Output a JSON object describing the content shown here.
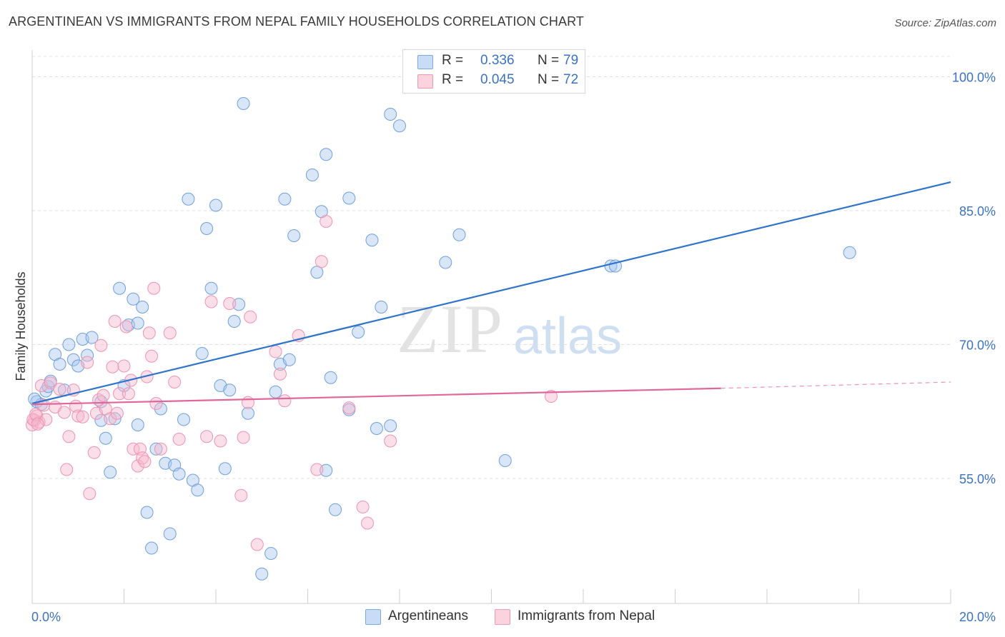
{
  "header": {
    "title": "ARGENTINEAN VS IMMIGRANTS FROM NEPAL FAMILY HOUSEHOLDS CORRELATION CHART",
    "source": "Source: ZipAtlas.com"
  },
  "watermark": {
    "part1": "ZIP",
    "part2": "atlas"
  },
  "legend": {
    "rows": [
      {
        "r_label": "R =",
        "r_value": "0.336",
        "n_label": "N =",
        "n_value": "79",
        "color": "#a9c8ef"
      },
      {
        "r_label": "R =",
        "r_value": "0.045",
        "n_label": "N =",
        "n_value": "72",
        "color": "#f6b9cb"
      }
    ]
  },
  "bottom_legend": {
    "items": [
      {
        "label": "Argentineans",
        "color": "#a9c8ef"
      },
      {
        "label": "Immigrants from Nepal",
        "color": "#f6b9cb"
      }
    ]
  },
  "chart_data": {
    "type": "scatter",
    "ylabel": "Family Households",
    "xlim": [
      0,
      20
    ],
    "ylim": [
      41,
      103
    ],
    "x_tick_labels": [
      "0.0%",
      "20.0%"
    ],
    "y_ticks": [
      55,
      70,
      85,
      100
    ],
    "y_tick_labels": [
      "55.0%",
      "70.0%",
      "85.0%",
      "100.0%"
    ],
    "grid": true,
    "series": [
      {
        "name": "Argentineans",
        "color": "#a9c8ef",
        "line_color": "#2f74cc",
        "trend": {
          "x": [
            0.0,
            20.0
          ],
          "y": [
            63.4,
            88.2
          ]
        },
        "points": [
          [
            0.1,
            63.6
          ],
          [
            0.2,
            63.3
          ],
          [
            0.3,
            64.8
          ],
          [
            0.35,
            65.3
          ],
          [
            0.4,
            65.9
          ],
          [
            0.5,
            68.9
          ],
          [
            0.6,
            67.8
          ],
          [
            0.7,
            64.9
          ],
          [
            0.8,
            70.0
          ],
          [
            0.9,
            68.3
          ],
          [
            1.0,
            67.6
          ],
          [
            1.1,
            70.6
          ],
          [
            1.2,
            68.8
          ],
          [
            1.3,
            70.8
          ],
          [
            1.5,
            63.6
          ],
          [
            1.5,
            61.5
          ],
          [
            1.6,
            59.5
          ],
          [
            1.7,
            55.7
          ],
          [
            1.8,
            61.7
          ],
          [
            1.9,
            76.3
          ],
          [
            2.0,
            65.4
          ],
          [
            2.1,
            72.2
          ],
          [
            2.2,
            75.1
          ],
          [
            2.3,
            72.4
          ],
          [
            2.3,
            61.0
          ],
          [
            2.4,
            74.2
          ],
          [
            2.5,
            51.2
          ],
          [
            2.6,
            47.2
          ],
          [
            2.7,
            58.3
          ],
          [
            2.8,
            62.8
          ],
          [
            2.9,
            56.7
          ],
          [
            3.0,
            48.8
          ],
          [
            3.1,
            56.5
          ],
          [
            3.2,
            55.5
          ],
          [
            3.3,
            61.6
          ],
          [
            3.4,
            86.3
          ],
          [
            3.5,
            54.8
          ],
          [
            3.6,
            53.7
          ],
          [
            3.7,
            69.0
          ],
          [
            3.8,
            83.0
          ],
          [
            3.9,
            76.3
          ],
          [
            4.0,
            85.6
          ],
          [
            4.1,
            65.4
          ],
          [
            4.2,
            56.1
          ],
          [
            4.3,
            64.9
          ],
          [
            4.4,
            72.6
          ],
          [
            4.5,
            74.5
          ],
          [
            4.6,
            97.0
          ],
          [
            4.7,
            62.3
          ],
          [
            5.0,
            44.3
          ],
          [
            5.2,
            46.6
          ],
          [
            5.3,
            64.7
          ],
          [
            5.4,
            67.8
          ],
          [
            5.5,
            86.3
          ],
          [
            5.6,
            68.3
          ],
          [
            5.7,
            82.2
          ],
          [
            6.1,
            89.0
          ],
          [
            6.2,
            78.1
          ],
          [
            6.3,
            84.9
          ],
          [
            6.4,
            91.3
          ],
          [
            6.4,
            55.9
          ],
          [
            6.5,
            66.3
          ],
          [
            6.6,
            51.5
          ],
          [
            6.9,
            86.4
          ],
          [
            6.9,
            62.7
          ],
          [
            7.1,
            71.4
          ],
          [
            7.4,
            81.7
          ],
          [
            7.5,
            60.6
          ],
          [
            7.6,
            74.2
          ],
          [
            7.8,
            60.9
          ],
          [
            7.8,
            95.8
          ],
          [
            8.0,
            94.5
          ],
          [
            9.0,
            79.2
          ],
          [
            9.3,
            82.3
          ],
          [
            10.3,
            57.0
          ],
          [
            12.6,
            78.8
          ],
          [
            12.7,
            78.8
          ],
          [
            17.8,
            80.3
          ],
          [
            0.05,
            63.9
          ]
        ]
      },
      {
        "name": "Immigrants from Nepal",
        "color": "#f6b9cb",
        "line_color": "#e0679a",
        "trend": {
          "x": [
            0.0,
            15.0
          ],
          "y": [
            63.3,
            65.1
          ]
        },
        "trend_dashed": {
          "x": [
            15.0,
            20.0
          ],
          "y": [
            65.1,
            65.8
          ]
        },
        "points": [
          [
            0.0,
            61.0
          ],
          [
            0.05,
            61.5
          ],
          [
            0.1,
            62.0
          ],
          [
            0.15,
            61.3
          ],
          [
            0.2,
            65.4
          ],
          [
            0.25,
            63.2
          ],
          [
            0.3,
            61.6
          ],
          [
            0.4,
            65.7
          ],
          [
            0.5,
            63.0
          ],
          [
            0.6,
            65.0
          ],
          [
            0.7,
            62.4
          ],
          [
            0.75,
            56.0
          ],
          [
            0.8,
            59.7
          ],
          [
            0.9,
            64.9
          ],
          [
            0.95,
            63.1
          ],
          [
            1.0,
            62.0
          ],
          [
            1.1,
            61.9
          ],
          [
            1.2,
            68.0
          ],
          [
            1.25,
            53.3
          ],
          [
            1.35,
            57.9
          ],
          [
            1.4,
            62.3
          ],
          [
            1.45,
            63.8
          ],
          [
            1.5,
            69.9
          ],
          [
            1.55,
            64.3
          ],
          [
            1.6,
            62.8
          ],
          [
            1.7,
            61.7
          ],
          [
            1.75,
            67.5
          ],
          [
            1.8,
            72.6
          ],
          [
            1.85,
            62.3
          ],
          [
            1.9,
            64.5
          ],
          [
            2.0,
            67.6
          ],
          [
            2.05,
            72.0
          ],
          [
            2.1,
            64.5
          ],
          [
            2.15,
            66.0
          ],
          [
            2.2,
            58.3
          ],
          [
            2.3,
            56.4
          ],
          [
            2.35,
            58.3
          ],
          [
            2.4,
            57.3
          ],
          [
            2.45,
            56.9
          ],
          [
            2.5,
            66.4
          ],
          [
            2.55,
            71.3
          ],
          [
            2.6,
            68.7
          ],
          [
            2.65,
            76.3
          ],
          [
            2.7,
            63.4
          ],
          [
            2.8,
            58.3
          ],
          [
            3.0,
            71.3
          ],
          [
            3.1,
            65.8
          ],
          [
            3.2,
            59.4
          ],
          [
            3.8,
            59.7
          ],
          [
            3.9,
            74.8
          ],
          [
            4.1,
            59.2
          ],
          [
            4.3,
            74.6
          ],
          [
            4.55,
            53.1
          ],
          [
            4.6,
            59.6
          ],
          [
            4.7,
            63.5
          ],
          [
            4.75,
            73.1
          ],
          [
            4.9,
            47.6
          ],
          [
            5.3,
            69.2
          ],
          [
            5.4,
            66.7
          ],
          [
            5.5,
            63.7
          ],
          [
            5.8,
            71.0
          ],
          [
            6.2,
            56.0
          ],
          [
            6.3,
            79.3
          ],
          [
            6.4,
            83.8
          ],
          [
            6.9,
            62.9
          ],
          [
            7.2,
            51.8
          ],
          [
            7.3,
            50.0
          ],
          [
            7.8,
            59.2
          ],
          [
            11.3,
            64.2
          ],
          [
            0.02,
            61.6
          ],
          [
            0.08,
            62.2
          ],
          [
            0.12,
            61.1
          ]
        ]
      }
    ]
  }
}
